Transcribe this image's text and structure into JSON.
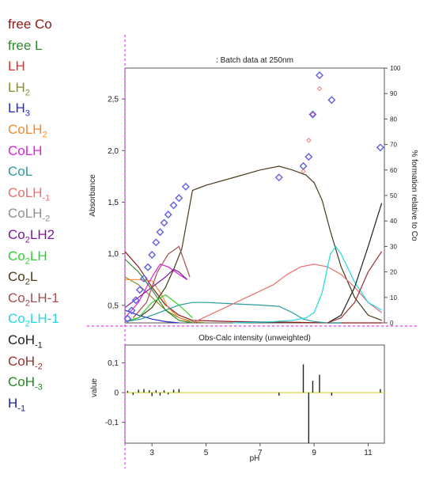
{
  "colors": {
    "free Co": "#8b1a1a",
    "free L": "#2e8b2e",
    "LH": "#e03030",
    "LH2": "#8c8c2a",
    "LH3": "#2a2ad0",
    "CoLH2": "#f08a30",
    "CoLH": "#e020e0",
    "CoL": "#2a9a9a",
    "CoLH-1": "#e87070",
    "CoLH-2": "#909090",
    "Co2LH2": "#7a1a9a",
    "Co2LH": "#30d030",
    "Co2L": "#4a3a1a",
    "Co2LH-1": "#a05050",
    "Co2LH-1b": "#20d8e0",
    "CoH-1": "#202020",
    "CoH-2": "#9a3030",
    "CoH-3": "#208a20",
    "H-1": "#2020a0",
    "cursor": "#e040e0",
    "residual_baseline": "#e0e060",
    "points": "#6060e0",
    "points_red": "#f08080"
  },
  "legend": [
    {
      "base": "free Co",
      "sub": "",
      "tail": "",
      "color": "free Co"
    },
    {
      "base": "free L",
      "sub": "",
      "tail": "",
      "color": "free L"
    },
    {
      "base": "LH",
      "sub": "",
      "tail": "",
      "color": "LH"
    },
    {
      "base": "LH",
      "sub": "2",
      "tail": "",
      "color": "LH2"
    },
    {
      "base": "LH",
      "sub": "3",
      "tail": "",
      "color": "LH3"
    },
    {
      "base": "CoLH",
      "sub": "2",
      "tail": "",
      "color": "CoLH2"
    },
    {
      "base": "CoLH",
      "sub": "",
      "tail": "",
      "color": "CoLH"
    },
    {
      "base": "CoL",
      "sub": "",
      "tail": "",
      "color": "CoL"
    },
    {
      "base": "CoLH",
      "sub": "-1",
      "tail": "",
      "color": "CoLH-1"
    },
    {
      "base": "CoLH",
      "sub": "-2",
      "tail": "",
      "color": "CoLH-2"
    },
    {
      "base": "Co",
      "sub": "2",
      "tail": "LH2",
      "color": "Co2LH2"
    },
    {
      "base": "Co",
      "sub": "2",
      "tail": "LH",
      "color": "Co2LH"
    },
    {
      "base": "Co",
      "sub": "2",
      "tail": "L",
      "color": "Co2L"
    },
    {
      "base": "Co",
      "sub": "2",
      "tail": "LH-1",
      "color": "Co2LH-1"
    },
    {
      "base": "Co",
      "sub": "2",
      "tail": "LH-1",
      "color": "Co2LH-1b"
    },
    {
      "base": "CoH",
      "sub": "-1",
      "tail": "",
      "color": "CoH-1"
    },
    {
      "base": "CoH",
      "sub": "-2",
      "tail": "",
      "color": "CoH-2"
    },
    {
      "base": "CoH",
      "sub": "-3",
      "tail": "",
      "color": "CoH-3"
    },
    {
      "base": "H",
      "sub": "-1",
      "tail": "",
      "color": "H-1"
    }
  ],
  "chart_data": [
    {
      "type": "line",
      "title": ": Batch data at 250nm",
      "ylabel": "Absorbance",
      "y2label": "% formation relative to Co",
      "xlim": [
        2.0,
        11.6
      ],
      "ylim": [
        0.33,
        2.8
      ],
      "y2lim": [
        0,
        100
      ],
      "yticks": [
        0.5,
        1.0,
        1.5,
        2.0,
        2.5
      ],
      "ytick_labels": [
        "0,5",
        "1,0",
        "1,5",
        "2,0",
        "2,5"
      ],
      "y2ticks": [
        0,
        10,
        20,
        30,
        40,
        50,
        60,
        70,
        80,
        90,
        100
      ],
      "absorbance_points": {
        "x": [
          2.1,
          2.25,
          2.4,
          2.55,
          2.7,
          2.85,
          3.0,
          3.15,
          3.3,
          3.45,
          3.6,
          3.8,
          4.0,
          4.25,
          7.7,
          8.6,
          8.8,
          8.95,
          9.2,
          9.65,
          11.45
        ],
        "y": [
          0.37,
          0.45,
          0.55,
          0.65,
          0.76,
          0.87,
          0.99,
          1.11,
          1.21,
          1.3,
          1.38,
          1.47,
          1.54,
          1.65,
          1.74,
          1.85,
          1.94,
          2.35,
          2.73,
          2.49,
          2.03
        ]
      },
      "absorbance_points_red": {
        "x": [
          8.6,
          8.8,
          8.95,
          9.2
        ],
        "y": [
          1.8,
          2.1,
          2.35,
          2.6
        ]
      },
      "species_percent": [
        {
          "name": "free Co",
          "x": [
            2.0,
            2.5,
            3.0,
            3.5,
            4.0,
            4.5,
            6.0,
            7.7,
            8.5,
            9.0,
            9.5,
            10.0,
            10.5,
            11.0,
            11.5
          ],
          "y": [
            28,
            22,
            14,
            7,
            3,
            1,
            0.5,
            0.3,
            0.2,
            0.1,
            0,
            0,
            0,
            0,
            0
          ]
        },
        {
          "name": "LH2",
          "x": [
            2.0,
            2.5,
            3.0,
            3.5,
            4.0,
            4.5,
            5.0
          ],
          "y": [
            18,
            15,
            10,
            5,
            2,
            0.5,
            0
          ]
        },
        {
          "name": "LH3",
          "x": [
            2.0,
            2.5,
            3.0,
            3.5,
            4.0
          ],
          "y": [
            5,
            3,
            1.5,
            0.5,
            0
          ]
        },
        {
          "name": "CoLH2",
          "x": [
            2.0,
            2.5,
            3.0,
            3.3,
            3.6,
            4.0,
            4.4
          ],
          "y": [
            17,
            17,
            16.5,
            12,
            6,
            2,
            0.5
          ]
        },
        {
          "name": "CoLH",
          "x": [
            2.0,
            2.5,
            3.0,
            3.3,
            3.6,
            4.0,
            4.3
          ],
          "y": [
            2,
            8,
            18,
            23,
            22,
            19,
            17
          ]
        },
        {
          "name": "CoL",
          "x": [
            2.0,
            2.6,
            3.0,
            3.5,
            4.0,
            4.5,
            5.0,
            6.0,
            7.0,
            7.7,
            8.2,
            8.6,
            9.0,
            9.5,
            10.0
          ],
          "y": [
            0.5,
            1.5,
            3,
            5,
            7,
            8,
            8,
            7.5,
            7,
            6.5,
            4,
            1.5,
            0.5,
            0,
            0
          ]
        },
        {
          "name": "Co2L",
          "x": [
            2.0,
            2.5,
            3.0,
            3.5,
            3.8,
            4.1,
            4.5,
            5.0,
            6.0,
            7.0,
            7.7,
            8.2,
            8.7,
            9.0,
            9.3,
            9.6,
            10.0,
            10.5,
            11.0,
            11.5
          ],
          "y": [
            0.5,
            2,
            6,
            14,
            21,
            29,
            52,
            54,
            57,
            60,
            61.5,
            60,
            58,
            55,
            48,
            36,
            22,
            10,
            3,
            1
          ]
        },
        {
          "name": "CoLH-1",
          "x": [
            4.5,
            5.5,
            6.5,
            7.5,
            8.0,
            8.5,
            9.0,
            9.5,
            10.0,
            10.5,
            11.0,
            11.5
          ],
          "y": [
            0,
            5,
            10,
            15,
            19,
            22,
            23,
            22,
            19,
            14,
            8,
            4
          ]
        },
        {
          "name": "Co2LH-1b",
          "x": [
            6.0,
            7.5,
            8.2,
            8.7,
            9.0,
            9.3,
            9.6,
            9.8,
            10.0,
            10.5,
            11.0,
            11.5
          ],
          "y": [
            0,
            0.5,
            1,
            2,
            4,
            12,
            27,
            30,
            27,
            16,
            8,
            5
          ]
        },
        {
          "name": "CoH-1",
          "x": [
            9.5,
            10.0,
            10.5,
            11.0,
            11.5
          ],
          "y": [
            0,
            3,
            14,
            30,
            47
          ]
        },
        {
          "name": "CoH-2",
          "x": [
            9.5,
            10.0,
            10.5,
            11.0,
            11.5
          ],
          "y": [
            0,
            2,
            8,
            20,
            28
          ]
        },
        {
          "name": "Co2LH2",
          "x": [
            2.0,
            2.5,
            3.0,
            3.5,
            3.8,
            4.0,
            4.3
          ],
          "y": [
            6,
            10,
            14,
            18,
            21,
            20,
            17
          ]
        },
        {
          "name": "free L",
          "x": [
            2.0,
            2.5,
            3.0,
            3.5,
            4.0,
            4.5
          ],
          "y": [
            25,
            20,
            13,
            5,
            1,
            0
          ]
        },
        {
          "name": "Co2LH",
          "x": [
            2.0,
            2.5,
            3.0,
            3.5,
            4.0,
            4.5
          ],
          "y": [
            0.5,
            2,
            8,
            11,
            7,
            2
          ]
        },
        {
          "name": "Co2LH-1",
          "x": [
            2.3,
            2.8,
            3.2,
            3.6,
            4.0,
            4.4
          ],
          "y": [
            2,
            8,
            20,
            27,
            30,
            18
          ]
        }
      ]
    },
    {
      "type": "bar",
      "title": "Obs-Calc intensity (unweighted)",
      "xlabel": "pH",
      "ylabel": "value",
      "xlim": [
        2.0,
        11.6
      ],
      "ylim": [
        -0.17,
        0.16
      ],
      "xticks": [
        3,
        5,
        7,
        9,
        11
      ],
      "yticks": [
        -0.1,
        0,
        0.1
      ],
      "ytick_labels": [
        "-0,1",
        "0",
        "0,1"
      ],
      "x": [
        2.1,
        2.3,
        2.5,
        2.7,
        2.9,
        3.0,
        3.15,
        3.3,
        3.45,
        3.6,
        3.8,
        4.0,
        7.7,
        8.6,
        8.8,
        8.95,
        9.2,
        9.65,
        11.45
      ],
      "values": [
        0.006,
        -0.008,
        0.01,
        0.012,
        0.008,
        -0.012,
        0.008,
        -0.01,
        0.008,
        -0.006,
        0.01,
        0.012,
        -0.01,
        0.095,
        -0.17,
        0.04,
        0.06,
        -0.01,
        0.012
      ]
    }
  ]
}
